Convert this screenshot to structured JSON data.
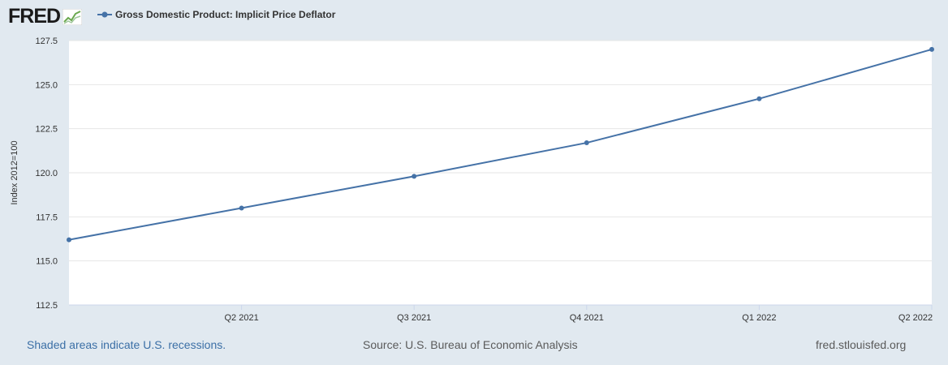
{
  "header": {
    "logo_text": "FRED",
    "legend_label": "Gross Domestic Product: Implicit Price Deflator"
  },
  "footer": {
    "recessions_note": "Shaded areas indicate U.S. recessions.",
    "source": "Source: U.S. Bureau of Economic Analysis",
    "site": "fred.stlouisfed.org"
  },
  "colors": {
    "line": "#4572a7",
    "background": "#e1e9f0",
    "plot_background": "#ffffff",
    "grid": "#e6e6e6",
    "logo_green": "#6aa84f"
  },
  "chart_data": {
    "type": "line",
    "ylabel": "Index 2012=100",
    "xlabel": "",
    "ylim": [
      112.5,
      127.5
    ],
    "yticks": [
      "112.5",
      "115.0",
      "117.5",
      "120.0",
      "122.5",
      "125.0",
      "127.5"
    ],
    "ytick_values": [
      112.5,
      115.0,
      117.5,
      120.0,
      122.5,
      125.0,
      127.5
    ],
    "x": [
      "2021-01-01",
      "2021-04-01",
      "2021-07-01",
      "2021-10-01",
      "2022-01-01",
      "2022-04-01"
    ],
    "xticks": [
      "Q2 2021",
      "Q3 2021",
      "Q4 2021",
      "Q1 2022",
      "Q2 2022"
    ],
    "grid": true,
    "series": [
      {
        "name": "Gross Domestic Product: Implicit Price Deflator",
        "values": [
          116.2,
          118.0,
          119.8,
          121.7,
          124.2,
          127.0
        ]
      }
    ]
  }
}
